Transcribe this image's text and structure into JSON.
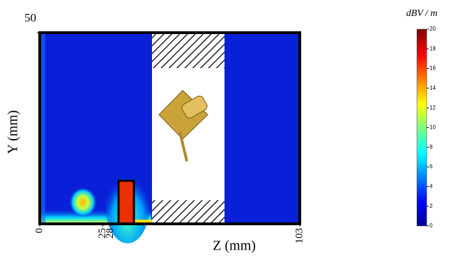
{
  "chart_data": {
    "type": "heatmap",
    "xlabel": "Z (mm)",
    "ylabel": "Y (mm)",
    "xlim": [
      0,
      103
    ],
    "xticks": [
      0,
      25,
      28,
      103
    ],
    "ylim": [
      0,
      50
    ],
    "yticks": [
      50
    ],
    "colorbar": {
      "label": "dBV / m",
      "lim": [
        0,
        20
      ],
      "ticks": [
        0,
        2,
        4,
        6,
        8,
        10,
        12,
        14,
        16,
        18,
        20
      ]
    }
  }
}
